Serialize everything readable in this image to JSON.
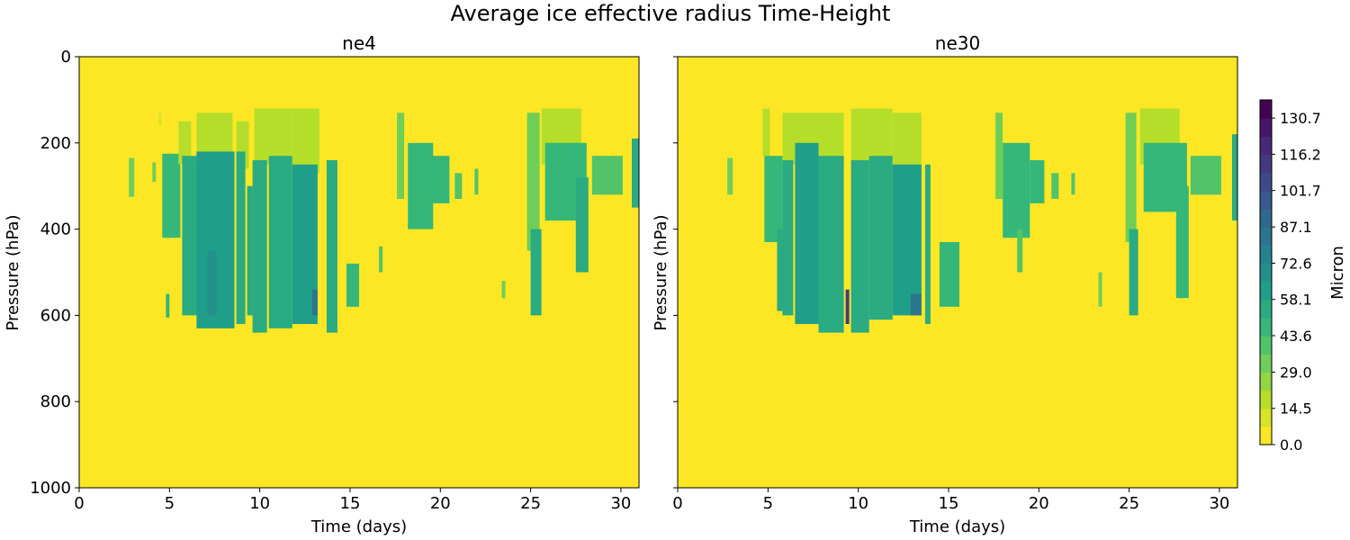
{
  "title": "Average ice effective radius Time-Height",
  "chart_data": [
    {
      "type": "heatmap",
      "title": "ne4",
      "xlabel": "Time (days)",
      "ylabel": "Pressure (hPa)",
      "xlim": [
        0,
        31
      ],
      "ylim": [
        1000,
        0
      ],
      "xticks": [
        0,
        5,
        10,
        15,
        20,
        25,
        30
      ],
      "yticks": [
        0,
        200,
        400,
        600,
        800,
        1000
      ],
      "background_value": 0.0,
      "features": [
        {
          "t0": 2.75,
          "t1": 3.05,
          "p_top": 235,
          "p_bot": 325,
          "value": 36
        },
        {
          "t0": 4.05,
          "t1": 4.25,
          "p_top": 245,
          "p_bot": 290,
          "value": 30
        },
        {
          "t0": 4.4,
          "t1": 4.55,
          "p_top": 130,
          "p_bot": 160,
          "value": 14
        },
        {
          "t0": 4.6,
          "t1": 5.6,
          "p_top": 225,
          "p_bot": 420,
          "value": 50
        },
        {
          "t0": 4.8,
          "t1": 5.0,
          "p_top": 550,
          "p_bot": 605,
          "value": 50
        },
        {
          "t0": 5.5,
          "t1": 6.2,
          "p_top": 150,
          "p_bot": 250,
          "value": 18
        },
        {
          "t0": 5.7,
          "t1": 6.5,
          "p_top": 230,
          "p_bot": 600,
          "value": 58
        },
        {
          "t0": 6.5,
          "t1": 8.5,
          "p_top": 130,
          "p_bot": 250,
          "value": 18
        },
        {
          "t0": 6.5,
          "t1": 8.6,
          "p_top": 220,
          "p_bot": 630,
          "value": 60
        },
        {
          "t0": 7.1,
          "t1": 7.6,
          "p_top": 450,
          "p_bot": 600,
          "value": 66
        },
        {
          "t0": 8.7,
          "t1": 9.4,
          "p_top": 150,
          "p_bot": 260,
          "value": 16
        },
        {
          "t0": 8.7,
          "t1": 9.2,
          "p_top": 220,
          "p_bot": 620,
          "value": 58
        },
        {
          "t0": 9.3,
          "t1": 9.6,
          "p_top": 300,
          "p_bot": 600,
          "value": 55
        },
        {
          "t0": 9.7,
          "t1": 11.8,
          "p_top": 120,
          "p_bot": 250,
          "value": 20
        },
        {
          "t0": 9.6,
          "t1": 10.4,
          "p_top": 240,
          "p_bot": 640,
          "value": 58
        },
        {
          "t0": 10.5,
          "t1": 11.8,
          "p_top": 230,
          "p_bot": 630,
          "value": 58
        },
        {
          "t0": 11.8,
          "t1": 13.3,
          "p_top": 120,
          "p_bot": 270,
          "value": 18
        },
        {
          "t0": 11.8,
          "t1": 13.2,
          "p_top": 250,
          "p_bot": 620,
          "value": 60
        },
        {
          "t0": 12.9,
          "t1": 13.2,
          "p_top": 540,
          "p_bot": 600,
          "value": 80
        },
        {
          "t0": 13.7,
          "t1": 14.3,
          "p_top": 240,
          "p_bot": 640,
          "value": 55
        },
        {
          "t0": 14.8,
          "t1": 15.5,
          "p_top": 480,
          "p_bot": 580,
          "value": 45
        },
        {
          "t0": 16.6,
          "t1": 16.8,
          "p_top": 440,
          "p_bot": 500,
          "value": 40
        },
        {
          "t0": 17.6,
          "t1": 18.0,
          "p_top": 130,
          "p_bot": 330,
          "value": 35
        },
        {
          "t0": 18.2,
          "t1": 19.6,
          "p_top": 200,
          "p_bot": 400,
          "value": 50
        },
        {
          "t0": 19.5,
          "t1": 20.5,
          "p_top": 230,
          "p_bot": 340,
          "value": 45
        },
        {
          "t0": 20.8,
          "t1": 21.2,
          "p_top": 270,
          "p_bot": 330,
          "value": 40
        },
        {
          "t0": 21.9,
          "t1": 22.1,
          "p_top": 260,
          "p_bot": 320,
          "value": 40
        },
        {
          "t0": 23.4,
          "t1": 23.6,
          "p_top": 520,
          "p_bot": 560,
          "value": 30
        },
        {
          "t0": 24.8,
          "t1": 25.5,
          "p_top": 130,
          "p_bot": 450,
          "value": 35
        },
        {
          "t0": 25.0,
          "t1": 25.6,
          "p_top": 400,
          "p_bot": 600,
          "value": 55
        },
        {
          "t0": 25.6,
          "t1": 27.8,
          "p_top": 120,
          "p_bot": 250,
          "value": 18
        },
        {
          "t0": 25.8,
          "t1": 28.1,
          "p_top": 200,
          "p_bot": 380,
          "value": 45
        },
        {
          "t0": 27.5,
          "t1": 28.2,
          "p_top": 280,
          "p_bot": 500,
          "value": 52
        },
        {
          "t0": 28.4,
          "t1": 30.1,
          "p_top": 230,
          "p_bot": 320,
          "value": 40
        },
        {
          "t0": 30.6,
          "t1": 31.0,
          "p_top": 190,
          "p_bot": 350,
          "value": 55
        }
      ]
    },
    {
      "type": "heatmap",
      "title": "ne30",
      "xlabel": "Time (days)",
      "ylabel": "Pressure (hPa)",
      "xlim": [
        0,
        31
      ],
      "ylim": [
        1000,
        0
      ],
      "xticks": [
        0,
        5,
        10,
        15,
        20,
        25,
        30
      ],
      "yticks": [
        0,
        200,
        400,
        600,
        800,
        1000
      ],
      "background_value": 0.0,
      "features": [
        {
          "t0": 2.75,
          "t1": 3.05,
          "p_top": 235,
          "p_bot": 320,
          "value": 36
        },
        {
          "t0": 4.7,
          "t1": 5.1,
          "p_top": 120,
          "p_bot": 230,
          "value": 18
        },
        {
          "t0": 4.8,
          "t1": 5.8,
          "p_top": 230,
          "p_bot": 430,
          "value": 48
        },
        {
          "t0": 5.5,
          "t1": 6.0,
          "p_top": 400,
          "p_bot": 590,
          "value": 52
        },
        {
          "t0": 5.8,
          "t1": 9.2,
          "p_top": 130,
          "p_bot": 250,
          "value": 18
        },
        {
          "t0": 5.8,
          "t1": 6.4,
          "p_top": 240,
          "p_bot": 600,
          "value": 56
        },
        {
          "t0": 6.5,
          "t1": 7.8,
          "p_top": 200,
          "p_bot": 620,
          "value": 60
        },
        {
          "t0": 7.8,
          "t1": 9.2,
          "p_top": 230,
          "p_bot": 640,
          "value": 58
        },
        {
          "t0": 9.3,
          "t1": 9.5,
          "p_top": 540,
          "p_bot": 620,
          "value": 115
        },
        {
          "t0": 9.6,
          "t1": 11.9,
          "p_top": 120,
          "p_bot": 260,
          "value": 20
        },
        {
          "t0": 9.6,
          "t1": 10.6,
          "p_top": 240,
          "p_bot": 640,
          "value": 58
        },
        {
          "t0": 10.6,
          "t1": 11.9,
          "p_top": 230,
          "p_bot": 610,
          "value": 58
        },
        {
          "t0": 11.9,
          "t1": 13.5,
          "p_top": 130,
          "p_bot": 260,
          "value": 18
        },
        {
          "t0": 11.9,
          "t1": 13.5,
          "p_top": 250,
          "p_bot": 600,
          "value": 60
        },
        {
          "t0": 12.9,
          "t1": 13.5,
          "p_top": 550,
          "p_bot": 600,
          "value": 80
        },
        {
          "t0": 13.7,
          "t1": 14.0,
          "p_top": 250,
          "p_bot": 620,
          "value": 55
        },
        {
          "t0": 14.5,
          "t1": 15.6,
          "p_top": 430,
          "p_bot": 580,
          "value": 45
        },
        {
          "t0": 17.6,
          "t1": 18.0,
          "p_top": 130,
          "p_bot": 330,
          "value": 35
        },
        {
          "t0": 18.0,
          "t1": 19.5,
          "p_top": 200,
          "p_bot": 420,
          "value": 50
        },
        {
          "t0": 18.8,
          "t1": 19.1,
          "p_top": 400,
          "p_bot": 500,
          "value": 38
        },
        {
          "t0": 19.5,
          "t1": 20.3,
          "p_top": 240,
          "p_bot": 340,
          "value": 45
        },
        {
          "t0": 20.7,
          "t1": 21.1,
          "p_top": 270,
          "p_bot": 330,
          "value": 40
        },
        {
          "t0": 21.8,
          "t1": 22.0,
          "p_top": 270,
          "p_bot": 320,
          "value": 40
        },
        {
          "t0": 23.3,
          "t1": 23.5,
          "p_top": 500,
          "p_bot": 580,
          "value": 35
        },
        {
          "t0": 24.8,
          "t1": 25.4,
          "p_top": 130,
          "p_bot": 430,
          "value": 35
        },
        {
          "t0": 25.0,
          "t1": 25.5,
          "p_top": 400,
          "p_bot": 600,
          "value": 55
        },
        {
          "t0": 25.6,
          "t1": 27.8,
          "p_top": 120,
          "p_bot": 250,
          "value": 18
        },
        {
          "t0": 25.8,
          "t1": 28.2,
          "p_top": 200,
          "p_bot": 360,
          "value": 45
        },
        {
          "t0": 27.6,
          "t1": 28.3,
          "p_top": 300,
          "p_bot": 560,
          "value": 50
        },
        {
          "t0": 28.4,
          "t1": 30.1,
          "p_top": 230,
          "p_bot": 320,
          "value": 40
        },
        {
          "t0": 30.7,
          "t1": 31.0,
          "p_top": 180,
          "p_bot": 380,
          "value": 55
        }
      ]
    }
  ],
  "colorbar": {
    "label": "Micron",
    "min": 0.0,
    "max": 137.96,
    "levels": 19,
    "tick_values": [
      0.0,
      14.5,
      29.0,
      43.6,
      58.1,
      72.6,
      87.1,
      101.7,
      116.2,
      130.7
    ],
    "tick_labels": [
      "0.0",
      "14.5",
      "29.0",
      "43.6",
      "58.1",
      "72.6",
      "87.1",
      "101.7",
      "116.2",
      "130.7"
    ],
    "colormap": "viridis_r",
    "colors": [
      "#fde725",
      "#b5de2b",
      "#6ece58",
      "#35b779",
      "#1f9e89",
      "#26828e",
      "#31688e",
      "#3e4989",
      "#482878",
      "#440154"
    ]
  }
}
